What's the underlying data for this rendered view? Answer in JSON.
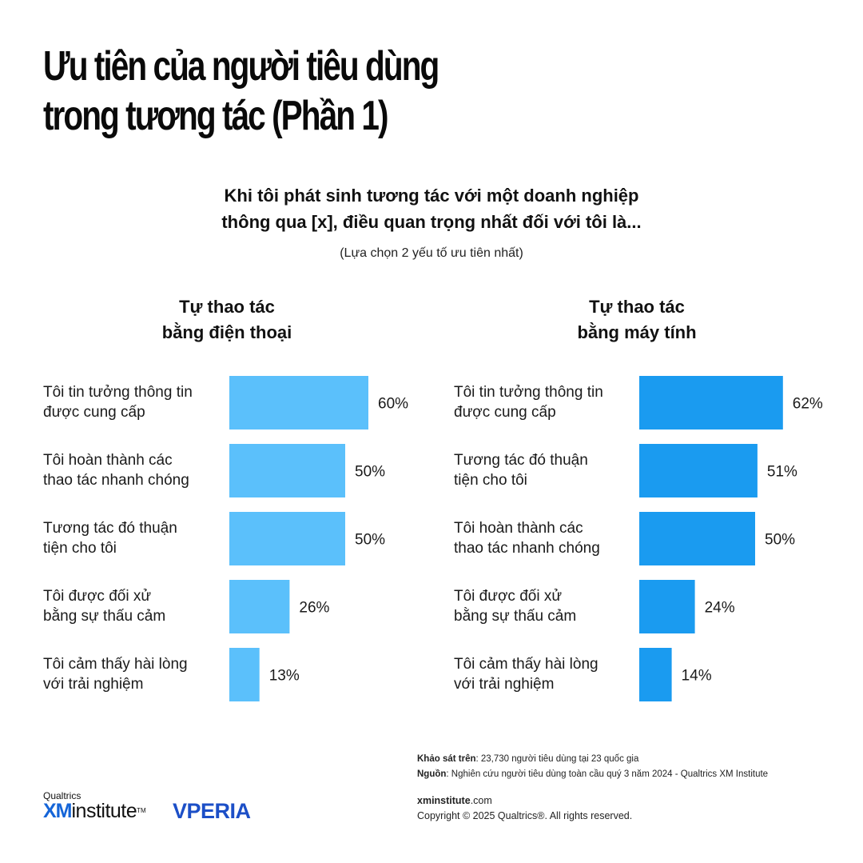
{
  "title": {
    "line1": "Ưu tiên của người tiêu dùng",
    "line2": "trong tương tác (Phần 1)"
  },
  "question": {
    "line1": "Khi tôi phát sinh tương tác với một doanh nghiệp",
    "line2": "thông qua [x], điều quan trọng nhất đối với tôi là..."
  },
  "note": "(Lựa chọn 2 yếu tố ưu tiên nhất)",
  "colors": {
    "left_bar": "#5bc0fb",
    "right_bar": "#1a9bf0"
  },
  "chart_data": [
    {
      "type": "bar",
      "orientation": "horizontal",
      "title": [
        "Tự thao tác",
        "bằng điện thoại"
      ],
      "categories": [
        [
          "Tôi tin tưởng thông tin",
          "được cung cấp"
        ],
        [
          "Tôi hoàn thành các",
          "thao tác nhanh chóng"
        ],
        [
          "Tương tác đó thuận",
          "tiện cho tôi"
        ],
        [
          "Tôi được đối xử",
          "bằng sự thấu cảm"
        ],
        [
          "Tôi cảm thấy hài lòng",
          "với trải nghiệm"
        ]
      ],
      "values": [
        60,
        50,
        50,
        26,
        13
      ],
      "value_labels": [
        "60%",
        "50%",
        "50%",
        "26%",
        "13%"
      ],
      "unit": "%",
      "xlim": [
        0,
        60
      ],
      "grid": false
    },
    {
      "type": "bar",
      "orientation": "horizontal",
      "title": [
        "Tự thao tác",
        "bằng máy tính"
      ],
      "categories": [
        [
          "Tôi tin tưởng thông tin",
          "được cung cấp"
        ],
        [
          "Tương tác đó thuận",
          "tiện cho tôi"
        ],
        [
          "Tôi hoàn thành các",
          "thao tác nhanh chóng"
        ],
        [
          "Tôi được đối xử",
          "bằng sự thấu cảm"
        ],
        [
          "Tôi cảm thấy hài lòng",
          "với trải nghiệm"
        ]
      ],
      "values": [
        62,
        51,
        50,
        24,
        14
      ],
      "value_labels": [
        "62%",
        "51%",
        "50%",
        "24%",
        "14%"
      ],
      "unit": "%",
      "xlim": [
        0,
        62
      ],
      "grid": false
    }
  ],
  "footnote": {
    "survey_label": "Khảo sát trên",
    "survey_value": ": 23,730 người tiêu dùng tại 23 quốc gia",
    "source_label": "Nguồn",
    "source_value": ": Nghiên cứu người tiêu dùng toàn cầu quý 3 năm 2024 - Qualtrics XM Institute"
  },
  "contact": {
    "site_bold": "xminstitute",
    "site_rest": ".com",
    "copyright": "Copyright © 2025 Qualtrics®. All rights reserved."
  },
  "logos": {
    "qualtrics": "Qualtrics",
    "xm": "XM",
    "institute": "institute",
    "tm": "TM",
    "vperia": "VPERIA"
  }
}
